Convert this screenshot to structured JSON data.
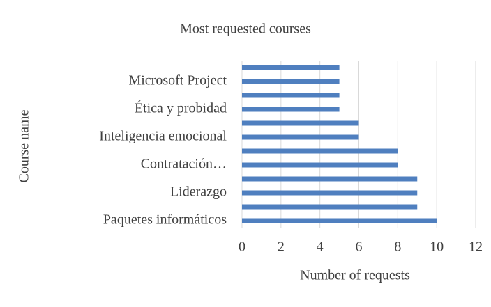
{
  "chart_data": {
    "type": "barh",
    "title": "Most requested courses",
    "x_label": "Number of requests",
    "y_label": "Course name",
    "categories": [
      "Paquetes informáticos",
      null,
      "Liderazgo",
      null,
      "Contratación…",
      null,
      "Inteligencia emocional",
      null,
      "Ética y probidad",
      null,
      "Microsoft Project",
      null
    ],
    "values": [
      10,
      9,
      9,
      9,
      8,
      8,
      6,
      6,
      5,
      5,
      5,
      5
    ],
    "color": "#4f7fbf",
    "xlim": [
      0,
      12
    ],
    "xticks": [
      0,
      2,
      4,
      6,
      8,
      10,
      12
    ],
    "grid": true
  }
}
